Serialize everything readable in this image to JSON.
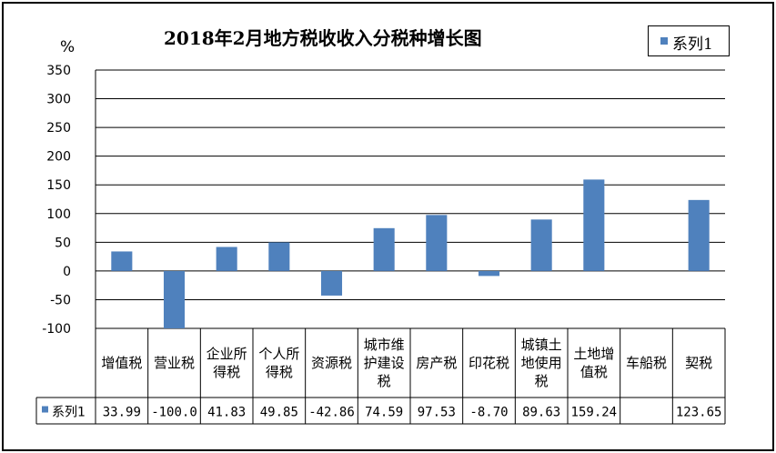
{
  "chart_data": {
    "type": "table",
    "chart_kind": "bar",
    "title": "2018年2月地方税收收入分税种增长图",
    "y_unit": "%",
    "ylim": [
      -100,
      350
    ],
    "yticks": [
      350,
      300,
      250,
      200,
      150,
      100,
      50,
      0,
      -50,
      -100
    ],
    "categories": [
      [
        "增值税"
      ],
      [
        "营业税"
      ],
      [
        "企业所",
        "得税"
      ],
      [
        "个人所",
        "得税"
      ],
      [
        "资源税"
      ],
      [
        "城市维",
        "护建设",
        "税"
      ],
      [
        "房产税"
      ],
      [
        "印花税"
      ],
      [
        "城镇土",
        "地使用",
        "税"
      ],
      [
        "土地增",
        "值税"
      ],
      [
        "车船税"
      ],
      [
        "契税"
      ]
    ],
    "series": [
      {
        "name": "系列1",
        "color": "#4f81bd",
        "values": [
          33.99,
          -100.0,
          41.83,
          49.85,
          -42.86,
          74.59,
          97.53,
          -8.7,
          89.63,
          159.24,
          null,
          123.65
        ],
        "labels": [
          "33.99",
          "-100.0",
          "41.83",
          "49.85",
          "-42.86",
          "74.59",
          "97.53",
          "-8.70",
          "89.63",
          "159.24",
          "",
          "123.65"
        ]
      }
    ],
    "legend": {
      "position": "top-right",
      "label": "系列1"
    },
    "grid": true
  }
}
